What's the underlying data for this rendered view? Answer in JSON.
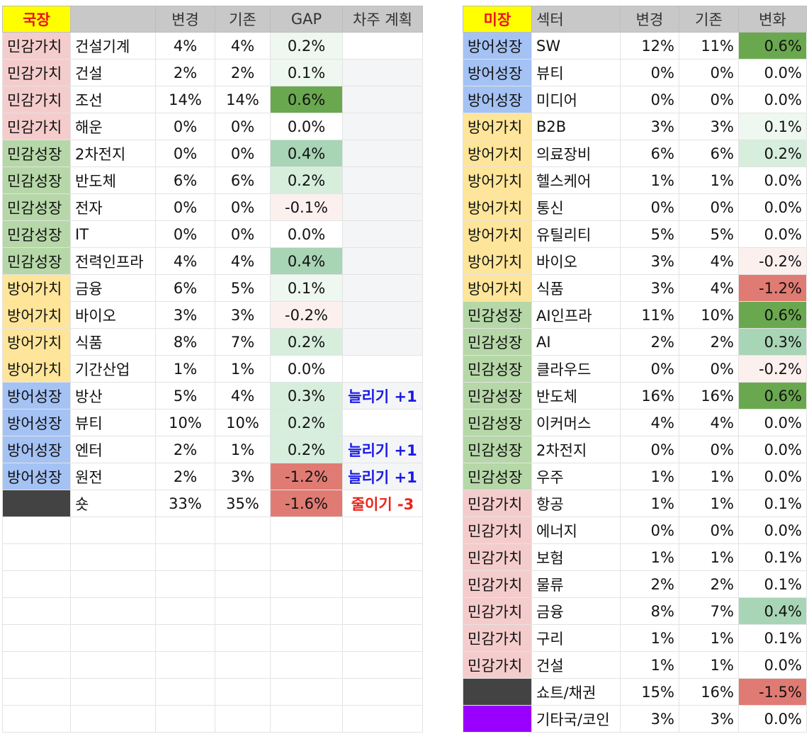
{
  "colors": {
    "tag_bg": {
      "민감가치": "#f4cccc",
      "민감성장": "#b6d7a8",
      "방어가치": "#ffe599",
      "방어성장": "#a4c2f4",
      "dark": "#434343",
      "purple": "#9900ff"
    },
    "gap_bg": {
      "strong_pos": "#6aa84f",
      "mid_pos": "#a8d5b5",
      "light_pos": "#d7eedd",
      "faint_pos": "#eef7f0",
      "faint_neg": "#fcf0ef",
      "mid_neg": "#f4cccc",
      "strong_neg": "#e07b73"
    }
  },
  "left": {
    "headers": [
      "국장",
      "",
      "변경",
      "기존",
      "GAP",
      "차주 계획"
    ],
    "rows": [
      {
        "tag": "민감가치",
        "tone": "민감가치",
        "sector": "건설기계",
        "new": "4%",
        "old": "4%",
        "gap": "0.2%",
        "gap_bg": "faint_pos",
        "plan": "",
        "plan_type": "blank"
      },
      {
        "tag": "민감가치",
        "tone": "민감가치",
        "sector": "건설",
        "new": "2%",
        "old": "2%",
        "gap": "0.1%",
        "gap_bg": "faint_pos",
        "plan": "",
        "plan_type": "empty"
      },
      {
        "tag": "민감가치",
        "tone": "민감가치",
        "sector": "조선",
        "new": "14%",
        "old": "14%",
        "gap": "0.6%",
        "gap_bg": "strong_pos",
        "plan": "",
        "plan_type": "empty"
      },
      {
        "tag": "민감가치",
        "tone": "민감가치",
        "sector": "해운",
        "new": "0%",
        "old": "0%",
        "gap": "0.0%",
        "gap_bg": "",
        "plan": "",
        "plan_type": "empty"
      },
      {
        "tag": "민감성장",
        "tone": "민감성장",
        "sector": "2차전지",
        "new": "0%",
        "old": "0%",
        "gap": "0.4%",
        "gap_bg": "mid_pos",
        "plan": "",
        "plan_type": "empty"
      },
      {
        "tag": "민감성장",
        "tone": "민감성장",
        "sector": "반도체",
        "new": "6%",
        "old": "6%",
        "gap": "0.2%",
        "gap_bg": "light_pos",
        "plan": "",
        "plan_type": "empty"
      },
      {
        "tag": "민감성장",
        "tone": "민감성장",
        "sector": "전자",
        "new": "0%",
        "old": "0%",
        "gap": "-0.1%",
        "gap_bg": "faint_neg",
        "plan": "",
        "plan_type": "empty"
      },
      {
        "tag": "민감성장",
        "tone": "민감성장",
        "sector": "IT",
        "new": "0%",
        "old": "0%",
        "gap": "0.0%",
        "gap_bg": "",
        "plan": "",
        "plan_type": "empty"
      },
      {
        "tag": "민감성장",
        "tone": "민감성장",
        "sector": "전력인프라",
        "new": "4%",
        "old": "4%",
        "gap": "0.4%",
        "gap_bg": "mid_pos",
        "plan": "",
        "plan_type": "empty"
      },
      {
        "tag": "방어가치",
        "tone": "방어가치",
        "sector": "금융",
        "new": "6%",
        "old": "5%",
        "gap": "0.1%",
        "gap_bg": "faint_pos",
        "plan": "",
        "plan_type": "empty"
      },
      {
        "tag": "방어가치",
        "tone": "방어가치",
        "sector": "바이오",
        "new": "3%",
        "old": "3%",
        "gap": "-0.2%",
        "gap_bg": "faint_neg",
        "plan": "",
        "plan_type": "empty"
      },
      {
        "tag": "방어가치",
        "tone": "방어가치",
        "sector": "식품",
        "new": "8%",
        "old": "7%",
        "gap": "0.2%",
        "gap_bg": "light_pos",
        "plan": "",
        "plan_type": "empty"
      },
      {
        "tag": "방어가치",
        "tone": "방어가치",
        "sector": "기간산업",
        "new": "1%",
        "old": "1%",
        "gap": "0.0%",
        "gap_bg": "",
        "plan": "",
        "plan_type": "blank"
      },
      {
        "tag": "방어성장",
        "tone": "방어성장",
        "sector": "방산",
        "new": "5%",
        "old": "4%",
        "gap": "0.3%",
        "gap_bg": "light_pos",
        "plan": "늘리기 +1",
        "plan_type": "up"
      },
      {
        "tag": "방어성장",
        "tone": "방어성장",
        "sector": "뷰티",
        "new": "10%",
        "old": "10%",
        "gap": "0.2%",
        "gap_bg": "light_pos",
        "plan": "",
        "plan_type": "blank"
      },
      {
        "tag": "방어성장",
        "tone": "방어성장",
        "sector": "엔터",
        "new": "2%",
        "old": "1%",
        "gap": "0.2%",
        "gap_bg": "light_pos",
        "plan": "늘리기 +1",
        "plan_type": "up"
      },
      {
        "tag": "방어성장",
        "tone": "방어성장",
        "sector": "원전",
        "new": "2%",
        "old": "3%",
        "gap": "-1.2%",
        "gap_bg": "strong_neg",
        "plan": "늘리기 +1",
        "plan_type": "up"
      },
      {
        "tag": "",
        "tone": "dark",
        "sector": "숏",
        "new": "33%",
        "old": "35%",
        "gap": "-1.6%",
        "gap_bg": "strong_neg",
        "plan": "줄이기 -3",
        "plan_type": "down"
      }
    ]
  },
  "right": {
    "headers": [
      "미장",
      "섹터",
      "변경",
      "기존",
      "변화"
    ],
    "rows": [
      {
        "tag": "방어성장",
        "tone": "방어성장",
        "sector": "SW",
        "new": "12%",
        "old": "11%",
        "change": "0.6%",
        "change_bg": "strong_pos"
      },
      {
        "tag": "방어성장",
        "tone": "방어성장",
        "sector": "뷰티",
        "new": "0%",
        "old": "0%",
        "change": "0.0%",
        "change_bg": ""
      },
      {
        "tag": "방어성장",
        "tone": "방어성장",
        "sector": "미디어",
        "new": "0%",
        "old": "0%",
        "change": "0.0%",
        "change_bg": ""
      },
      {
        "tag": "방어가치",
        "tone": "방어가치",
        "sector": "B2B",
        "new": "3%",
        "old": "3%",
        "change": "0.1%",
        "change_bg": "faint_pos"
      },
      {
        "tag": "방어가치",
        "tone": "방어가치",
        "sector": "의료장비",
        "new": "6%",
        "old": "6%",
        "change": "0.2%",
        "change_bg": "light_pos"
      },
      {
        "tag": "방어가치",
        "tone": "방어가치",
        "sector": "헬스케어",
        "new": "1%",
        "old": "1%",
        "change": "0.0%",
        "change_bg": ""
      },
      {
        "tag": "방어가치",
        "tone": "방어가치",
        "sector": "통신",
        "new": "0%",
        "old": "0%",
        "change": "0.0%",
        "change_bg": ""
      },
      {
        "tag": "방어가치",
        "tone": "방어가치",
        "sector": "유틸리티",
        "new": "5%",
        "old": "5%",
        "change": "0.0%",
        "change_bg": ""
      },
      {
        "tag": "방어가치",
        "tone": "방어가치",
        "sector": "바이오",
        "new": "3%",
        "old": "4%",
        "change": "-0.2%",
        "change_bg": "faint_neg"
      },
      {
        "tag": "방어가치",
        "tone": "방어가치",
        "sector": "식품",
        "new": "3%",
        "old": "4%",
        "change": "-1.2%",
        "change_bg": "strong_neg"
      },
      {
        "tag": "민감성장",
        "tone": "민감성장",
        "sector": "AI인프라",
        "new": "11%",
        "old": "10%",
        "change": "0.6%",
        "change_bg": "strong_pos"
      },
      {
        "tag": "민감성장",
        "tone": "민감성장",
        "sector": "AI",
        "new": "2%",
        "old": "2%",
        "change": "0.3%",
        "change_bg": "mid_pos"
      },
      {
        "tag": "민감성장",
        "tone": "민감성장",
        "sector": "클라우드",
        "new": "0%",
        "old": "0%",
        "change": "-0.2%",
        "change_bg": "faint_neg"
      },
      {
        "tag": "민감성장",
        "tone": "민감성장",
        "sector": "반도체",
        "new": "16%",
        "old": "16%",
        "change": "0.6%",
        "change_bg": "strong_pos"
      },
      {
        "tag": "민감성장",
        "tone": "민감성장",
        "sector": "이커머스",
        "new": "4%",
        "old": "4%",
        "change": "0.0%",
        "change_bg": ""
      },
      {
        "tag": "민감성장",
        "tone": "민감성장",
        "sector": "2차전지",
        "new": "0%",
        "old": "0%",
        "change": "0.0%",
        "change_bg": ""
      },
      {
        "tag": "민감성장",
        "tone": "민감성장",
        "sector": "우주",
        "new": "1%",
        "old": "1%",
        "change": "0.0%",
        "change_bg": ""
      },
      {
        "tag": "민감가치",
        "tone": "민감가치",
        "sector": "항공",
        "new": "1%",
        "old": "1%",
        "change": "0.1%",
        "change_bg": ""
      },
      {
        "tag": "민감가치",
        "tone": "민감가치",
        "sector": "에너지",
        "new": "0%",
        "old": "0%",
        "change": "0.0%",
        "change_bg": ""
      },
      {
        "tag": "민감가치",
        "tone": "민감가치",
        "sector": "보험",
        "new": "1%",
        "old": "1%",
        "change": "0.1%",
        "change_bg": ""
      },
      {
        "tag": "민감가치",
        "tone": "민감가치",
        "sector": "물류",
        "new": "2%",
        "old": "2%",
        "change": "0.1%",
        "change_bg": ""
      },
      {
        "tag": "민감가치",
        "tone": "민감가치",
        "sector": "금융",
        "new": "8%",
        "old": "7%",
        "change": "0.4%",
        "change_bg": "mid_pos"
      },
      {
        "tag": "민감가치",
        "tone": "민감가치",
        "sector": "구리",
        "new": "1%",
        "old": "1%",
        "change": "0.1%",
        "change_bg": ""
      },
      {
        "tag": "민감가치",
        "tone": "민감가치",
        "sector": "건설",
        "new": "1%",
        "old": "1%",
        "change": "0.0%",
        "change_bg": ""
      },
      {
        "tag": "",
        "tone": "dark",
        "sector": "쇼트/채권",
        "new": "15%",
        "old": "16%",
        "change": "-1.5%",
        "change_bg": "strong_neg"
      },
      {
        "tag": "",
        "tone": "purple",
        "sector": "기타국/코인",
        "new": "3%",
        "old": "3%",
        "change": "0.0%",
        "change_bg": ""
      }
    ]
  }
}
